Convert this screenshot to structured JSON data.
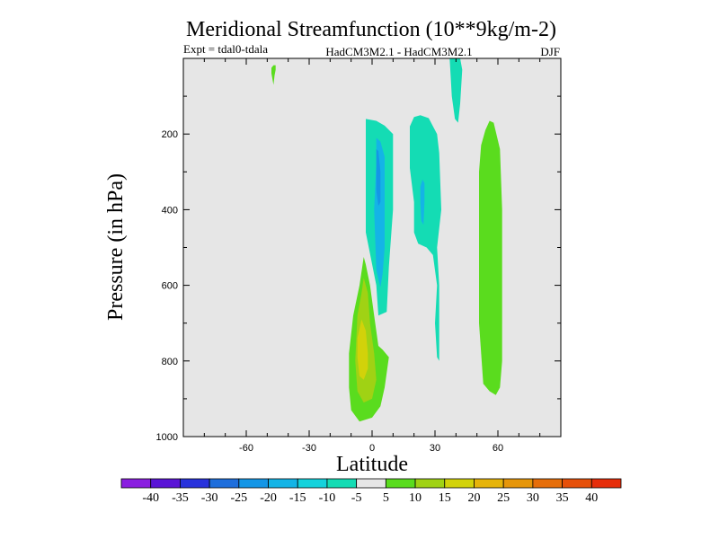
{
  "chart_data": {
    "type": "contour",
    "title": "Meridional Streamfunction (10**9kg/m-2)",
    "subtitle_left": "Expt = tdal0-tdala",
    "subtitle_center": "HadCM3M2.1 - HadCM3M2.1",
    "subtitle_right": "DJF",
    "xlabel": "Latitude",
    "ylabel": "Pressure (in hPa)",
    "xlim": [
      -90,
      90
    ],
    "ylim": [
      1000,
      0
    ],
    "xticks": [
      "-60",
      "-30",
      "0",
      "30",
      "60"
    ],
    "xtick_values": [
      -60,
      -30,
      0,
      30,
      60
    ],
    "yticks": [
      "200",
      "400",
      "600",
      "800",
      "1000"
    ],
    "ytick_values": [
      200,
      400,
      600,
      800,
      1000
    ],
    "background_color": "#e6e6e6",
    "colorbar": {
      "labels": [
        "-40",
        "-35",
        "-30",
        "-25",
        "-20",
        "-15",
        "-10",
        "-5",
        "5",
        "10",
        "15",
        "20",
        "25",
        "30",
        "35",
        "40"
      ],
      "colors": [
        "#8a1ee0",
        "#5a14d6",
        "#2832dc",
        "#1e6edc",
        "#1496e6",
        "#14b4e6",
        "#14d2dc",
        "#14dcb4",
        "#e6e6e6",
        "#5adc1e",
        "#a0d214",
        "#d2d20a",
        "#e6b40a",
        "#e6960a",
        "#e66e0a",
        "#e6500a",
        "#e62d0a"
      ]
    },
    "regions": [
      {
        "name": "green-sliver-left",
        "level": 5,
        "color": "#5adc1e",
        "points": [
          [
            -47,
            18
          ],
          [
            -46,
            18
          ],
          [
            -46,
            30
          ],
          [
            -46.5,
            45
          ],
          [
            -47,
            70
          ],
          [
            -48,
            40
          ],
          [
            -48,
            25
          ]
        ]
      },
      {
        "name": "teal-column-top",
        "level": -5,
        "color": "#14dcb4",
        "points": [
          [
            37,
            0
          ],
          [
            42,
            0
          ],
          [
            43,
            30
          ],
          [
            42,
            120
          ],
          [
            41,
            170
          ],
          [
            39.5,
            160
          ],
          [
            38,
            100
          ],
          [
            37.5,
            50
          ]
        ]
      },
      {
        "name": "green-right-column",
        "level": 5,
        "color": "#5adc1e",
        "points": [
          [
            56,
            165
          ],
          [
            58,
            170
          ],
          [
            61,
            240
          ],
          [
            62,
            400
          ],
          [
            62,
            600
          ],
          [
            62,
            800
          ],
          [
            61,
            870
          ],
          [
            59,
            890
          ],
          [
            56,
            880
          ],
          [
            53,
            860
          ],
          [
            51,
            700
          ],
          [
            51,
            500
          ],
          [
            51,
            300
          ],
          [
            52,
            230
          ],
          [
            54,
            190
          ]
        ]
      },
      {
        "name": "teal-blob-upper",
        "level": -5,
        "color": "#14dcb4",
        "points": [
          [
            -3,
            160
          ],
          [
            2,
            165
          ],
          [
            6,
            178
          ],
          [
            10,
            200
          ],
          [
            10,
            400
          ],
          [
            8,
            550
          ],
          [
            7,
            670
          ],
          [
            3,
            680
          ],
          [
            2,
            600
          ],
          [
            -3,
            460
          ],
          [
            -3,
            300
          ]
        ]
      },
      {
        "name": "teal-column-right",
        "level": -5,
        "color": "#14dcb4",
        "points": [
          [
            20,
            155
          ],
          [
            23,
            150
          ],
          [
            27,
            158
          ],
          [
            31,
            200
          ],
          [
            32,
            250
          ],
          [
            33,
            400
          ],
          [
            31,
            500
          ],
          [
            32,
            600
          ],
          [
            32,
            700
          ],
          [
            32,
            800
          ],
          [
            31,
            790
          ],
          [
            30,
            700
          ],
          [
            31,
            600
          ],
          [
            29,
            520
          ],
          [
            26,
            500
          ],
          [
            22,
            490
          ],
          [
            20,
            460
          ],
          [
            20,
            380
          ],
          [
            18,
            290
          ],
          [
            18,
            180
          ]
        ]
      },
      {
        "name": "cyan-patch-upper",
        "level": -10,
        "color": "#14b4e6",
        "points": [
          [
            2,
            210
          ],
          [
            4,
            220
          ],
          [
            6,
            260
          ],
          [
            6,
            500
          ],
          [
            5,
            570
          ],
          [
            4,
            605
          ],
          [
            2,
            560
          ],
          [
            1,
            400
          ],
          [
            2,
            280
          ]
        ]
      },
      {
        "name": "blue-core-upper",
        "level": -15,
        "color": "#1496e6",
        "points": [
          [
            2,
            240
          ],
          [
            3,
            245
          ],
          [
            4,
            300
          ],
          [
            4,
            380
          ],
          [
            3,
            390
          ],
          [
            2,
            350
          ],
          [
            2,
            280
          ]
        ]
      },
      {
        "name": "cyan-patch-right",
        "level": -10,
        "color": "#14b4e6",
        "points": [
          [
            24,
            320
          ],
          [
            25,
            330
          ],
          [
            25,
            380
          ],
          [
            24.5,
            440
          ],
          [
            23.5,
            430
          ],
          [
            23,
            380
          ],
          [
            23,
            340
          ]
        ]
      },
      {
        "name": "green-lower",
        "level": 5,
        "color": "#5adc1e",
        "points": [
          [
            -4,
            525
          ],
          [
            -3,
            545
          ],
          [
            -1,
            600
          ],
          [
            1,
            680
          ],
          [
            3,
            760
          ],
          [
            5,
            770
          ],
          [
            8,
            790
          ],
          [
            6,
            870
          ],
          [
            4,
            920
          ],
          [
            0,
            950
          ],
          [
            -6,
            960
          ],
          [
            -10,
            930
          ],
          [
            -11,
            870
          ],
          [
            -11,
            780
          ],
          [
            -9,
            680
          ],
          [
            -6,
            600
          ]
        ]
      },
      {
        "name": "lime-lower",
        "level": 10,
        "color": "#a0d214",
        "points": [
          [
            -4,
            580
          ],
          [
            -2,
            620
          ],
          [
            -1,
            700
          ],
          [
            1,
            780
          ],
          [
            2,
            850
          ],
          [
            0,
            900
          ],
          [
            -4,
            910
          ],
          [
            -7,
            880
          ],
          [
            -8,
            800
          ],
          [
            -7,
            680
          ],
          [
            -5,
            620
          ]
        ]
      },
      {
        "name": "yellow-core-lower",
        "level": 15,
        "color": "#d2d20a",
        "points": [
          [
            -5,
            690
          ],
          [
            -3,
            720
          ],
          [
            -2,
            780
          ],
          [
            -2,
            820
          ],
          [
            -4,
            850
          ],
          [
            -6,
            840
          ],
          [
            -7,
            790
          ],
          [
            -7,
            740
          ]
        ]
      }
    ]
  }
}
